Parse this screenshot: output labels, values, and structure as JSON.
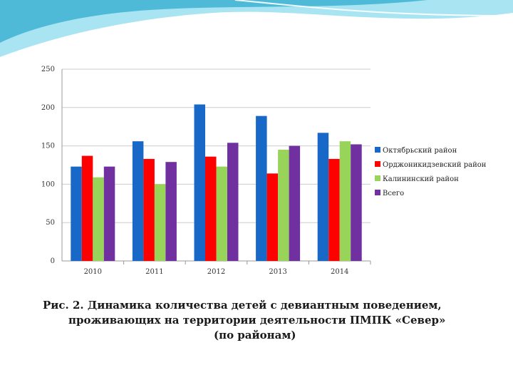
{
  "colors": {
    "accent_light": "#a9e4f2",
    "accent": "#3fb3d3",
    "grid": "#cccccc",
    "axis": "#999999"
  },
  "caption": {
    "line1": "Рис. 2. Динамика количества детей с девиантным поведением,",
    "line2": "проживающих на территории деятельности ПМПК «Север»",
    "line3": "(по районам)"
  },
  "chart_data": {
    "type": "bar",
    "categories": [
      "2010",
      "2011",
      "2012",
      "2013",
      "2014"
    ],
    "ylim": [
      0,
      250
    ],
    "yticks": [
      "0",
      "50",
      "100",
      "150",
      "200",
      "250"
    ],
    "grid": true,
    "legend_position": "right",
    "series": [
      {
        "name": "Октябрьский район",
        "color": "#1868c8",
        "values": [
          123,
          156,
          204,
          189,
          167
        ]
      },
      {
        "name": "Орджоникидзевский район",
        "color": "#ff0000",
        "values": [
          137,
          133,
          136,
          114,
          133
        ]
      },
      {
        "name": "Калининский район",
        "color": "#99d45a",
        "values": [
          109,
          100,
          123,
          145,
          156
        ]
      },
      {
        "name": "Всего",
        "color": "#7030a0",
        "values": [
          123,
          129,
          154,
          150,
          152
        ]
      }
    ]
  }
}
